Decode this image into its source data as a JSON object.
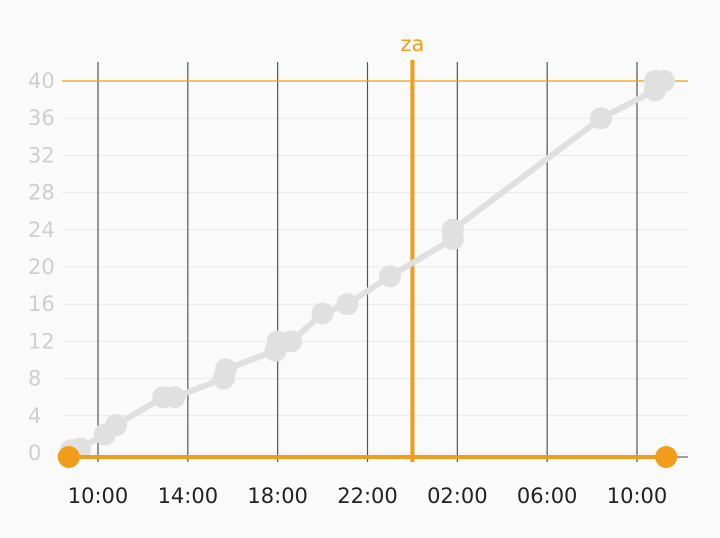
{
  "chart_data": {
    "type": "line",
    "title": "",
    "xlabel": "",
    "ylabel": "",
    "ylim": [
      0,
      40
    ],
    "y_ticks": [
      0,
      4,
      8,
      12,
      16,
      20,
      24,
      28,
      32,
      36,
      40
    ],
    "x_ticks": [
      {
        "label": "10:00",
        "hour": 10
      },
      {
        "label": "14:00",
        "hour": 14
      },
      {
        "label": "18:00",
        "hour": 18
      },
      {
        "label": "22:00",
        "hour": 22
      },
      {
        "label": "02:00",
        "hour": 26
      },
      {
        "label": "06:00",
        "hour": 30
      },
      {
        "label": "10:00",
        "hour": 34
      }
    ],
    "xlim_hours": [
      8.6,
      35.5
    ],
    "series": [
      {
        "color": "#e0e0e0",
        "points": [
          {
            "x": 8.8,
            "y": 0.3
          },
          {
            "x": 9.2,
            "y": 0.5
          },
          {
            "x": 10.3,
            "y": 2
          },
          {
            "x": 10.8,
            "y": 3
          },
          {
            "x": 12.9,
            "y": 6
          },
          {
            "x": 13.4,
            "y": 6
          },
          {
            "x": 15.6,
            "y": 8
          },
          {
            "x": 15.7,
            "y": 9
          },
          {
            "x": 17.9,
            "y": 11
          },
          {
            "x": 18.0,
            "y": 12
          },
          {
            "x": 18.6,
            "y": 12
          },
          {
            "x": 20.0,
            "y": 15
          },
          {
            "x": 21.1,
            "y": 16
          },
          {
            "x": 23.0,
            "y": 19
          },
          {
            "x": 25.8,
            "y": 23
          },
          {
            "x": 25.8,
            "y": 24
          },
          {
            "x": 32.4,
            "y": 36
          },
          {
            "x": 34.8,
            "y": 39
          },
          {
            "x": 34.8,
            "y": 40
          },
          {
            "x": 35.2,
            "y": 40
          }
        ]
      }
    ],
    "annotations": {
      "vline": {
        "label": "za",
        "x": 24.0,
        "color": "#f29d19"
      },
      "hline_top": {
        "y": 40,
        "color": "#f29d19"
      },
      "baseline": {
        "y": 0,
        "color": "#f29d19",
        "markers": [
          8.7,
          35.3
        ]
      }
    },
    "grid": true
  }
}
